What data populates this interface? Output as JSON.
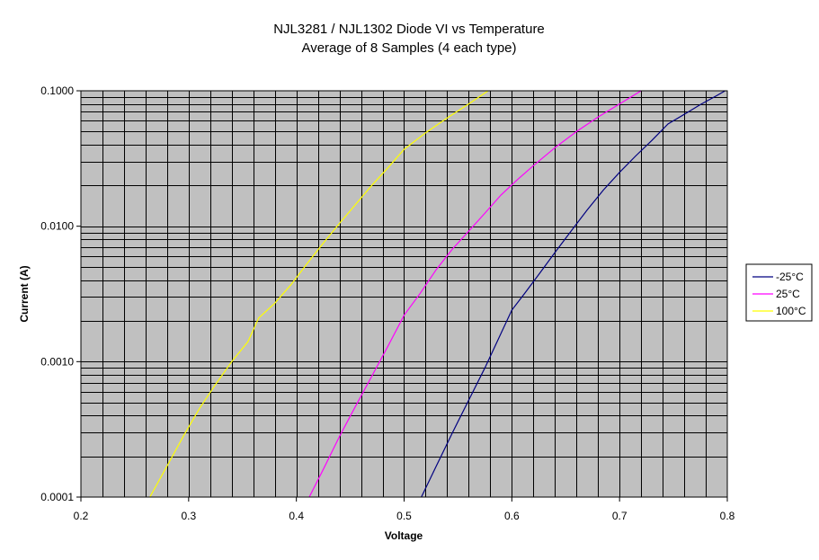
{
  "chart_data": {
    "type": "line",
    "title": "NJL3281 /  NJL1302 Diode VI vs Temperature",
    "subtitle": "Average of 8 Samples (4 each type)",
    "xlabel": "Voltage",
    "ylabel": "Current (A)",
    "xlim": [
      0.2,
      0.8
    ],
    "ylim": [
      0.0001,
      0.1
    ],
    "y_scale": "log",
    "grid": true,
    "plot_background": "#c0c0c0",
    "legend_position": "right",
    "x_ticks": [
      0.2,
      0.3,
      0.4,
      0.5,
      0.6,
      0.7,
      0.8
    ],
    "x_tick_labels": [
      "0.2",
      "0.3",
      "0.4",
      "0.5",
      "0.6",
      "0.7",
      "0.8"
    ],
    "y_ticks": [
      0.0001,
      0.001,
      0.01,
      0.1
    ],
    "y_tick_labels": [
      "0.0001",
      "0.0010",
      "0.0100",
      "0.1000"
    ],
    "series": [
      {
        "name": "-25°C",
        "color": "#000080",
        "x": [
          0.516,
          0.53,
          0.545,
          0.56,
          0.575,
          0.588,
          0.6,
          0.612,
          0.625,
          0.64,
          0.655,
          0.67,
          0.685,
          0.7,
          0.715,
          0.73,
          0.745,
          0.76,
          0.775,
          0.79,
          0.798
        ],
        "y": [
          0.0001,
          0.00017,
          0.0003,
          0.00052,
          0.0009,
          0.0015,
          0.0024,
          0.0032,
          0.0044,
          0.0064,
          0.0092,
          0.0132,
          0.0185,
          0.025,
          0.033,
          0.043,
          0.057,
          0.067,
          0.079,
          0.092,
          0.1
        ]
      },
      {
        "name": "25°C",
        "color": "#ff00ff",
        "x": [
          0.412,
          0.425,
          0.44,
          0.455,
          0.47,
          0.485,
          0.5,
          0.515,
          0.53,
          0.545,
          0.56,
          0.575,
          0.59,
          0.605,
          0.62,
          0.64,
          0.66,
          0.68,
          0.7,
          0.72
        ],
        "y": [
          0.0001,
          0.00016,
          0.00028,
          0.00047,
          0.00078,
          0.0013,
          0.0022,
          0.0032,
          0.0048,
          0.0068,
          0.0092,
          0.0125,
          0.017,
          0.022,
          0.028,
          0.038,
          0.05,
          0.064,
          0.08,
          0.1
        ]
      },
      {
        "name": "100°C",
        "color": "#ffff00",
        "x": [
          0.264,
          0.28,
          0.295,
          0.31,
          0.325,
          0.34,
          0.355,
          0.365,
          0.38,
          0.395,
          0.41,
          0.425,
          0.44,
          0.455,
          0.47,
          0.485,
          0.5,
          0.52,
          0.54,
          0.56,
          0.578
        ],
        "y": [
          0.0001,
          0.00017,
          0.00028,
          0.00045,
          0.00068,
          0.001,
          0.0014,
          0.0021,
          0.0027,
          0.0037,
          0.0053,
          0.0075,
          0.0105,
          0.0145,
          0.02,
          0.027,
          0.037,
          0.049,
          0.063,
          0.08,
          0.1
        ]
      }
    ]
  }
}
